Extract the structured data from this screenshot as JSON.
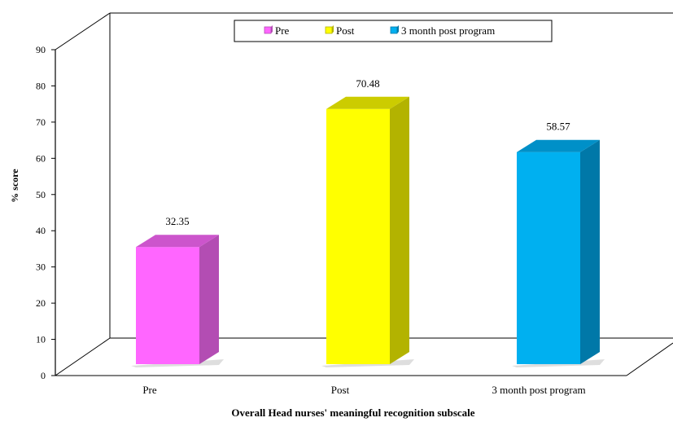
{
  "chart_data": {
    "type": "bar",
    "categories": [
      "Pre",
      "Post",
      "3 month post program"
    ],
    "values": [
      32.35,
      70.48,
      58.57
    ],
    "value_labels": [
      "32.35",
      "70.48",
      "58.57"
    ],
    "title": "",
    "xlabel": "Overall Head nurses' meaningful recognition subscale",
    "ylabel": "% score",
    "ylim": [
      0,
      90
    ],
    "yticks": [
      "0",
      "10",
      "20",
      "30",
      "40",
      "50",
      "60",
      "70",
      "80",
      "90"
    ],
    "legend": {
      "position": "top",
      "entries": [
        "Pre",
        "Post",
        "3 month post program"
      ]
    },
    "grid": false,
    "style": "3d-column",
    "colors": {
      "Pre": {
        "front": "#ff66ff",
        "side": "#b34db3",
        "top": "#cc55cc"
      },
      "Post": {
        "front": "#ffff00",
        "side": "#b3b300",
        "top": "#cccc00"
      },
      "3 month post program": {
        "front": "#00b0f0",
        "side": "#0078a8",
        "top": "#0090c8"
      }
    }
  }
}
